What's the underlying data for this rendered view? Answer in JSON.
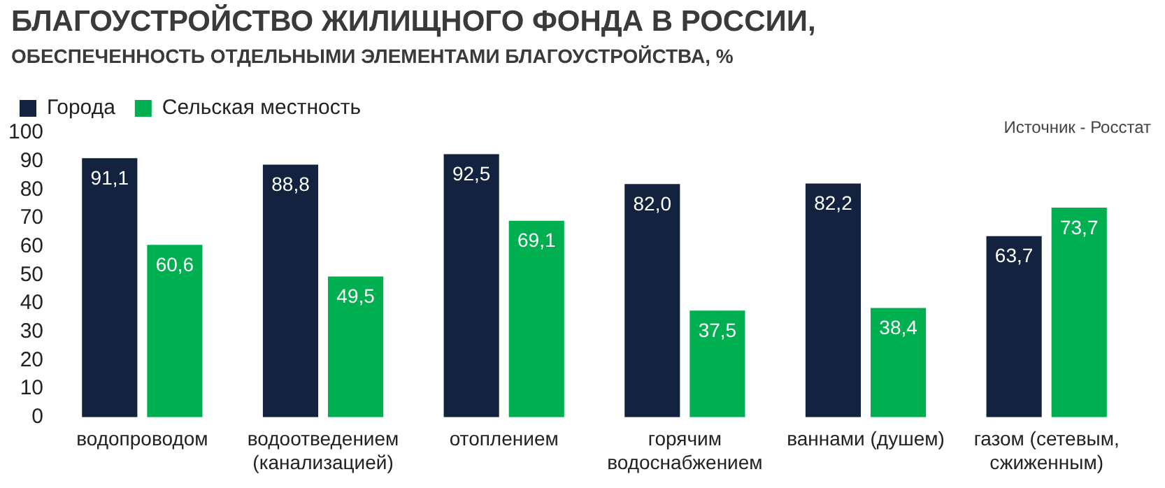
{
  "chart_data": {
    "type": "bar",
    "title": "БЛАГОУСТРОЙСТВО ЖИЛИЩНОГО ФОНДА В РОССИИ,",
    "subtitle": "ОБЕСПЕЧЕННОСТЬ ОТДЕЛЬНЫМИ ЭЛЕМЕНТАМИ БЛАГОУСТРОЙСТВА, %",
    "annotations": [
      "Источник - Росстат"
    ],
    "categories": [
      "водопроводом",
      "водоотведением (канализацией)",
      "отоплением",
      "горячим водоснабжением",
      "ваннами (душем)",
      "газом (сетевым, сжиженным)"
    ],
    "series": [
      {
        "name": "Города",
        "color": "#13233f",
        "values": [
          91.1,
          88.8,
          92.5,
          82.0,
          82.2,
          63.7
        ],
        "value_labels": [
          "91,1",
          "88,8",
          "92,5",
          "82,0",
          "82,2",
          "63,7"
        ]
      },
      {
        "name": "Сельская местность",
        "color": "#00b050",
        "values": [
          60.6,
          49.5,
          69.1,
          37.5,
          38.4,
          73.7
        ],
        "value_labels": [
          "60,6",
          "49,5",
          "69,1",
          "37,5",
          "38,4",
          "73,7"
        ]
      }
    ],
    "ylim": [
      0,
      100
    ],
    "yticks": [
      0,
      10,
      20,
      30,
      40,
      50,
      60,
      70,
      80,
      90,
      100
    ],
    "grid": false,
    "legend": "top left"
  }
}
